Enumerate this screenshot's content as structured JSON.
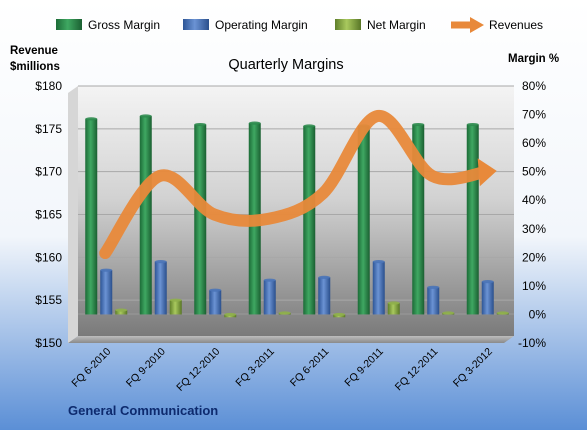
{
  "chart_data": {
    "type": "bar",
    "title": "Quarterly Margins",
    "footer": "General Communication",
    "left_axis_label_line1": "Revenue",
    "left_axis_label_line2": "$millions",
    "right_axis_label": "Margin %",
    "categories": [
      "FQ 6-2010",
      "FQ 9-2010",
      "FQ 12-2010",
      "FQ 3-2011",
      "FQ 6-2011",
      "FQ 9-2011",
      "FQ 12-2011",
      "FQ 3-2012"
    ],
    "left_axis": {
      "min": 150,
      "max": 180,
      "ticks": [
        "$150",
        "$155",
        "$160",
        "$165",
        "$170",
        "$175",
        "$180"
      ]
    },
    "right_axis": {
      "min": -10,
      "max": 80,
      "ticks": [
        "-10%",
        "0%",
        "10%",
        "20%",
        "30%",
        "40%",
        "50%",
        "60%",
        "70%",
        "80%"
      ]
    },
    "series": [
      {
        "name": "Gross Margin",
        "axis": "right",
        "color": "#2e8b4e",
        "values": [
          68.5,
          69.5,
          66.5,
          67,
          66,
          66,
          66.5,
          66.5
        ]
      },
      {
        "name": "Operating Margin",
        "axis": "right",
        "color": "#4a74b8",
        "values": [
          15.5,
          18.5,
          8.5,
          12,
          13,
          18.5,
          9.5,
          11.5
        ]
      },
      {
        "name": "Net Margin",
        "axis": "right",
        "color": "#8fb04a",
        "values": [
          1.5,
          5,
          -1,
          0.5,
          -1,
          4,
          0.5,
          0.5
        ]
      },
      {
        "name": "Revenues",
        "axis": "left",
        "color": "#e8893a",
        "type": "line",
        "values": [
          160.5,
          169.5,
          165,
          164.5,
          167.5,
          176.5,
          169.5,
          170
        ]
      }
    ],
    "legend_position": "top",
    "grid": true,
    "colors": {
      "page_bg_top": "#ffffff",
      "page_bg_bottom": "#5b8fd6",
      "plot_bg_top": "#f4f4f4",
      "plot_bg_bottom": "#7a7a7a",
      "grid": "#a8a8a8",
      "axis_text": "#000000",
      "footer_text": "#0d2a6e"
    }
  }
}
